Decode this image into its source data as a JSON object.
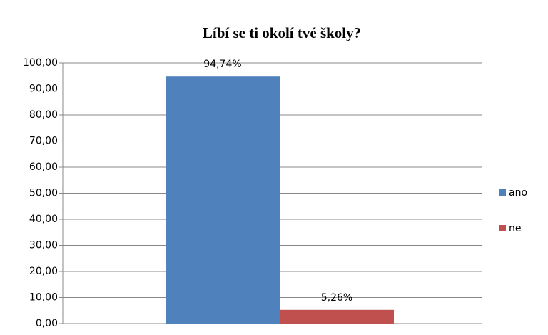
{
  "chart_data": {
    "type": "bar",
    "title": "Líbí se ti okolí tvé školy?",
    "categories": [
      null
    ],
    "series": [
      {
        "name": "ano",
        "color": "#4f81bd",
        "values": [
          94.74
        ],
        "value_labels": [
          "94,74%"
        ]
      },
      {
        "name": "ne",
        "color": "#c0504d",
        "values": [
          5.26
        ],
        "value_labels": [
          "5,26%"
        ]
      }
    ],
    "ylim": [
      0,
      100
    ],
    "yticks": [
      {
        "value": 0,
        "label": "0,00"
      },
      {
        "value": 10,
        "label": "10,00"
      },
      {
        "value": 20,
        "label": "20,00"
      },
      {
        "value": 30,
        "label": "30,00"
      },
      {
        "value": 40,
        "label": "40,00"
      },
      {
        "value": 50,
        "label": "50,00"
      },
      {
        "value": 60,
        "label": "60,00"
      },
      {
        "value": 70,
        "label": "70,00"
      },
      {
        "value": 80,
        "label": "80,00"
      },
      {
        "value": 90,
        "label": "90,00"
      },
      {
        "value": 100,
        "label": "100,00"
      }
    ],
    "grid": true,
    "legend": "right"
  }
}
